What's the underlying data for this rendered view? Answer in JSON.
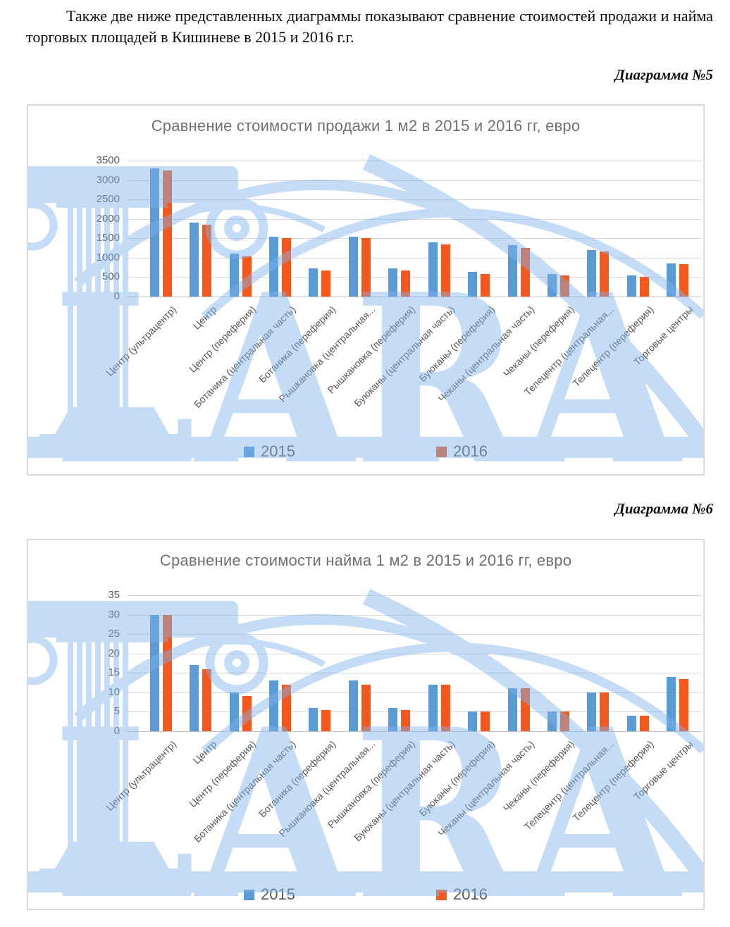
{
  "document": {
    "intro_text": "Также две ниже представленных диаграммы показывают сравнение стоимостей продажи и найма торговых площадей в Кишиневе в 2015 и 2016 г.г.",
    "diagram5_label": "Диаграмма №5",
    "diagram6_label": "Диаграмма №6",
    "watermark_text": "LARA"
  },
  "colors": {
    "series_2015": "#5B9BD5",
    "series_2016": "#F4581F",
    "title_gray": "#707070",
    "axis_gray": "#595959",
    "gridline": "#D9D9D9",
    "watermark_blue": "#7FB3EE",
    "chart_border": "#D8D8D8"
  },
  "chart_data": [
    {
      "type": "bar",
      "title": "Сравнение стоимости продажи 1 м2 в 2015 и 2016 гг, евро",
      "categories": [
        "Центр (ультрацентр)",
        "Центр",
        "Центр (переферия)",
        "Ботаника (центральная часть)",
        "Ботаника (переферия)",
        "Рышкановка (центральная...",
        "Рышкановка (переферия)",
        "Буюканы (центральная часть)",
        "Буюканы (переферия)",
        "Чеканы (центральная часть)",
        "Чеканы (переферия)",
        "Телецентр (центральная...",
        "Телецентр (переферия)",
        "Торговые центры"
      ],
      "series": [
        {
          "name": "2015",
          "color": "#5B9BD5",
          "values": [
            3300,
            1900,
            1100,
            1550,
            720,
            1550,
            720,
            1390,
            630,
            1320,
            580,
            1200,
            540,
            860
          ]
        },
        {
          "name": "2016",
          "color": "#F4581F",
          "values": [
            3250,
            1850,
            1040,
            1500,
            670,
            1500,
            670,
            1350,
            580,
            1260,
            550,
            1160,
            500,
            830
          ]
        }
      ],
      "xlabel": "",
      "ylabel": "",
      "ylim": [
        0,
        3500
      ],
      "ytick_step": 500,
      "grid": true,
      "legend_position": "bottom"
    },
    {
      "type": "bar",
      "title": "Сравнение стоимости найма 1 м2 в 2015 и 2016 гг, евро",
      "categories": [
        "Центр (ультрацентр)",
        "Центр",
        "Центр (переферия)",
        "Ботаника (центральная часть)",
        "Ботаника (переферия)",
        "Рышкановка (центральная...",
        "Рышкановка (переферия)",
        "Буюканы (центральная часть)",
        "Буюканы (переферия)",
        "Чеканы (центральная часть)",
        "Чеканы (переферия)",
        "Телецентр (центральная...",
        "Телецентр (переферия)",
        "Торговые центры"
      ],
      "series": [
        {
          "name": "2015",
          "color": "#5B9BD5",
          "values": [
            30,
            17,
            10,
            13,
            6,
            13,
            6,
            12,
            5,
            11,
            5,
            10,
            4,
            14
          ]
        },
        {
          "name": "2016",
          "color": "#F4581F",
          "values": [
            30,
            16,
            9,
            12,
            5.5,
            12,
            5.5,
            12,
            5,
            11,
            5,
            10,
            4,
            13.5
          ]
        }
      ],
      "xlabel": "",
      "ylabel": "",
      "ylim": [
        0,
        35
      ],
      "ytick_step": 5,
      "grid": true,
      "legend_position": "bottom"
    }
  ]
}
